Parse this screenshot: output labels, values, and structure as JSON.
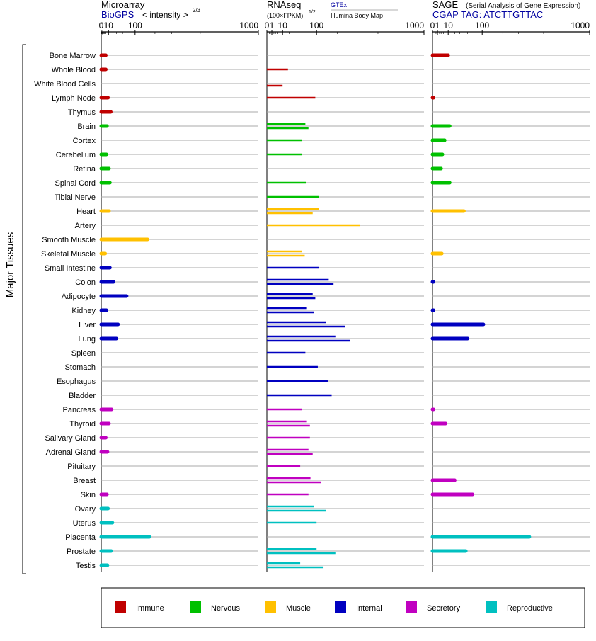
{
  "y_axis_label": "Major Tissues",
  "panels": [
    {
      "title": "Microarray",
      "source": "BioGPS",
      "units": "< intensity >",
      "units_power": "2/3"
    },
    {
      "title": "RNAseq",
      "units": "(100×FPKM)",
      "units_power": "1/2",
      "source_a": "GTEx",
      "source_b": "Illumina Body Map"
    },
    {
      "title": "SAGE",
      "subtitle": "(Serial Analysis of Gene Expression)",
      "source": "CGAP TAG: ATCTTGTTAC"
    }
  ],
  "legend": [
    {
      "name": "Immune",
      "color": "#c00000"
    },
    {
      "name": "Nervous",
      "color": "#00c000"
    },
    {
      "name": "Muscle",
      "color": "#ffc000"
    },
    {
      "name": "Internal",
      "color": "#0000c0"
    },
    {
      "name": "Secretory",
      "color": "#c000c0"
    },
    {
      "name": "Reproductive",
      "color": "#00c0c0"
    }
  ],
  "chart_data": {
    "type": "bar",
    "orientation": "horizontal",
    "scale": "power",
    "axis_ticks": [
      "0",
      "1",
      "10",
      "100",
      "1000"
    ],
    "tissues": [
      {
        "name": "Bone Marrow",
        "group": "Immune",
        "micro": 5,
        "gtex": null,
        "ibm": null,
        "sage": 10
      },
      {
        "name": "Whole Blood",
        "group": "Immune",
        "micro": 5,
        "gtex": 18,
        "ibm": null,
        "sage": null
      },
      {
        "name": "White Blood Cells",
        "group": "Immune",
        "micro": null,
        "gtex": null,
        "ibm": 10,
        "sage": null
      },
      {
        "name": "Lymph Node",
        "group": "Immune",
        "micro": 9,
        "gtex": 95,
        "ibm": null,
        "sage": 0.005
      },
      {
        "name": "Thymus",
        "group": "Immune",
        "micro": 15,
        "gtex": null,
        "ibm": null,
        "sage": null
      },
      {
        "name": "Brain",
        "group": "Nervous",
        "micro": 7,
        "gtex": 60,
        "ibm": 70,
        "sage": 12
      },
      {
        "name": "Cortex",
        "group": "Nervous",
        "micro": null,
        "gtex": 50,
        "ibm": null,
        "sage": 6
      },
      {
        "name": "Cerebellum",
        "group": "Nervous",
        "micro": 6,
        "gtex": 50,
        "ibm": null,
        "sage": 4
      },
      {
        "name": "Retina",
        "group": "Nervous",
        "micro": 11,
        "gtex": null,
        "ibm": null,
        "sage": 3
      },
      {
        "name": "Spinal Cord",
        "group": "Nervous",
        "micro": 13,
        "gtex": 62,
        "ibm": null,
        "sage": 12
      },
      {
        "name": "Tibial Nerve",
        "group": "Nervous",
        "micro": null,
        "gtex": 110,
        "ibm": null,
        "sage": null
      },
      {
        "name": "Heart",
        "group": "Muscle",
        "micro": 11,
        "gtex": 110,
        "ibm": 85,
        "sage": 40
      },
      {
        "name": "Artery",
        "group": "Muscle",
        "micro": null,
        "gtex": 350,
        "ibm": null,
        "sage": null
      },
      {
        "name": "Smooth Muscle",
        "group": "Muscle",
        "micro": 160,
        "gtex": null,
        "ibm": null,
        "sage": null
      },
      {
        "name": "Skeletal Muscle",
        "group": "Muscle",
        "micro": 4,
        "gtex": 50,
        "ibm": 58,
        "sage": 3.5
      },
      {
        "name": "Small Intestine",
        "group": "Internal",
        "micro": 13,
        "gtex": 110,
        "ibm": null,
        "sage": null
      },
      {
        "name": "Colon",
        "group": "Internal",
        "micro": 22,
        "gtex": 155,
        "ibm": 180,
        "sage": 0.005
      },
      {
        "name": "Adipocyte",
        "group": "Internal",
        "micro": 65,
        "gtex": 85,
        "ibm": 95,
        "sage": null
      },
      {
        "name": "Kidney",
        "group": "Internal",
        "micro": 6,
        "gtex": 65,
        "ibm": 90,
        "sage": 0.005
      },
      {
        "name": "Liver",
        "group": "Internal",
        "micro": 35,
        "gtex": 140,
        "ibm": 250,
        "sage": 105
      },
      {
        "name": "Lung",
        "group": "Internal",
        "micro": 30,
        "gtex": 190,
        "ibm": 280,
        "sage": 50
      },
      {
        "name": "Spleen",
        "group": "Internal",
        "micro": null,
        "gtex": 60,
        "ibm": null,
        "sage": null
      },
      {
        "name": "Stomach",
        "group": "Internal",
        "micro": null,
        "gtex": 105,
        "ibm": null,
        "sage": null
      },
      {
        "name": "Esophagus",
        "group": "Internal",
        "micro": null,
        "gtex": 150,
        "ibm": null,
        "sage": null
      },
      {
        "name": "Bladder",
        "group": "Internal",
        "micro": null,
        "gtex": 170,
        "ibm": null,
        "sage": null
      },
      {
        "name": "Pancreas",
        "group": "Secretory",
        "micro": 17,
        "gtex": 50,
        "ibm": null,
        "sage": 0.005
      },
      {
        "name": "Thyroid",
        "group": "Secretory",
        "micro": 11,
        "gtex": 65,
        "ibm": 75,
        "sage": 7
      },
      {
        "name": "Salivary Gland",
        "group": "Secretory",
        "micro": 5,
        "gtex": 75,
        "ibm": null,
        "sage": null
      },
      {
        "name": "Adrenal Gland",
        "group": "Secretory",
        "micro": 8,
        "gtex": 70,
        "ibm": 85,
        "sage": null
      },
      {
        "name": "Pituitary",
        "group": "Secretory",
        "micro": null,
        "gtex": 45,
        "ibm": null,
        "sage": null
      },
      {
        "name": "Breast",
        "group": "Secretory",
        "micro": null,
        "gtex": 77,
        "ibm": 120,
        "sage": 20
      },
      {
        "name": "Skin",
        "group": "Secretory",
        "micro": 7,
        "gtex": 70,
        "ibm": null,
        "sage": 65
      },
      {
        "name": "Ovary",
        "group": "Reproductive",
        "micro": 9,
        "gtex": 90,
        "ibm": 140,
        "sage": null
      },
      {
        "name": "Uterus",
        "group": "Reproductive",
        "micro": 19,
        "gtex": 100,
        "ibm": null,
        "sage": null
      },
      {
        "name": "Placenta",
        "group": "Reproductive",
        "micro": 170,
        "gtex": null,
        "ibm": null,
        "sage": 380
      },
      {
        "name": "Prostate",
        "group": "Reproductive",
        "micro": 16,
        "gtex": 100,
        "ibm": 190,
        "sage": 45
      },
      {
        "name": "Testis",
        "group": "Reproductive",
        "micro": 8,
        "gtex": 45,
        "ibm": 130,
        "sage": null
      }
    ]
  }
}
